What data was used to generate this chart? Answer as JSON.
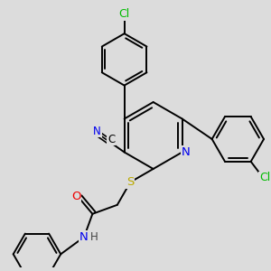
{
  "bg_color": "#dcdcdc",
  "bond_color": "#000000",
  "bond_width": 1.4,
  "atom_colors": {
    "C": "#000000",
    "N": "#0000ee",
    "O": "#ee0000",
    "S": "#bbaa00",
    "Cl": "#00bb00",
    "H": "#444444"
  },
  "font_size": 8.5,
  "fig_size": [
    3.0,
    3.0
  ],
  "dpi": 100
}
